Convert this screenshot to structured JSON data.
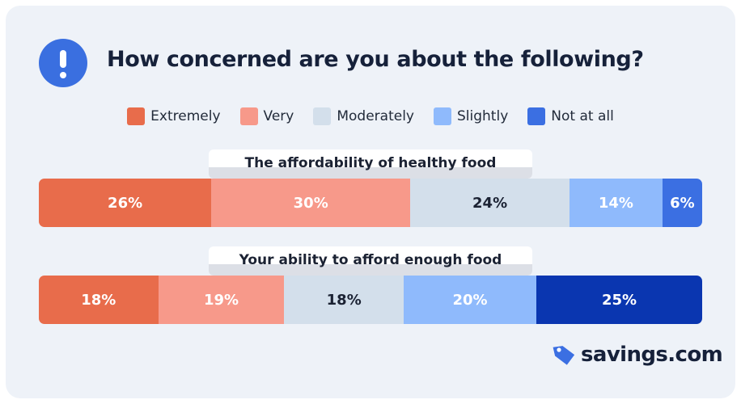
{
  "header": {
    "title": "How concerned are you about the following?",
    "icon": "exclamation-icon"
  },
  "colors": {
    "Extremely": "#e86c4b",
    "Very": "#f7998a",
    "Moderately": "#d3dfeb",
    "Slightly": "#8fbafc",
    "Not at all": "#3b6fe2",
    "Not at all (row 2)": "#0a36b0"
  },
  "chart_data": {
    "type": "bar",
    "orientation": "horizontal-stacked-100",
    "title": "How concerned are you about the following?",
    "legend": [
      "Extremely",
      "Very",
      "Moderately",
      "Slightly",
      "Not at all"
    ],
    "legend_placement": "top-center",
    "categories": [
      "The affordability of healthy food",
      "Your ability to afford enough food"
    ],
    "series": [
      {
        "name": "Extremely",
        "values": [
          26,
          18
        ],
        "labels": [
          "26%",
          "18%"
        ]
      },
      {
        "name": "Very",
        "values": [
          30,
          19
        ],
        "labels": [
          "30%",
          "19%"
        ]
      },
      {
        "name": "Moderately",
        "values": [
          24,
          18
        ],
        "labels": [
          "24%",
          "18%"
        ]
      },
      {
        "name": "Slightly",
        "values": [
          14,
          20
        ],
        "labels": [
          "14%",
          "20%"
        ]
      },
      {
        "name": "Not at all",
        "values": [
          6,
          25
        ],
        "labels": [
          "6%",
          "25%"
        ]
      }
    ]
  },
  "brand": {
    "name": "savings.com"
  }
}
